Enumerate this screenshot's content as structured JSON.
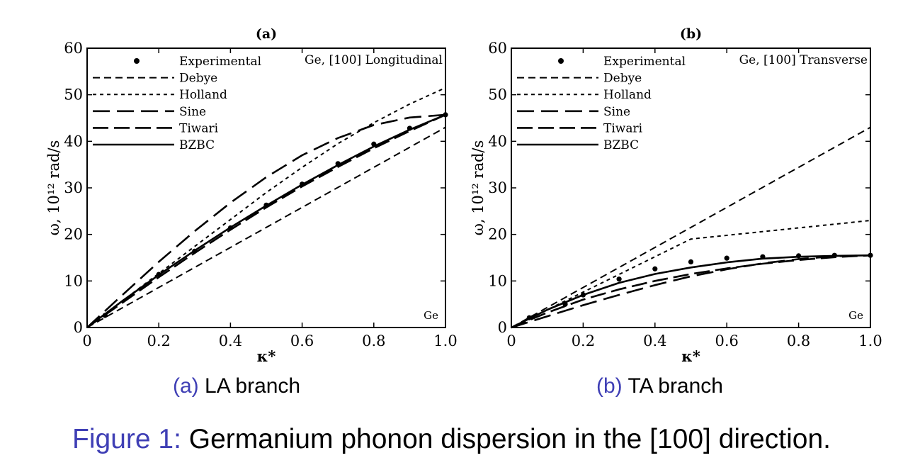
{
  "chart_data": [
    {
      "type": "line",
      "panel_label": "(a)",
      "annotation": "Ge, [100] Longitudinal",
      "corner_label": "Ge",
      "xlabel": "κ*",
      "ylabel": "ω, 10¹² rad/s",
      "xlim": [
        0,
        1.0
      ],
      "ylim": [
        0,
        60
      ],
      "xticks": [
        0,
        0.2,
        0.4,
        0.6,
        0.8,
        1.0
      ],
      "xtick_labels": [
        "0",
        "0.2",
        "0.4",
        "0.6",
        "0.8",
        "1.0"
      ],
      "yticks": [
        0,
        10,
        20,
        30,
        40,
        50,
        60
      ],
      "ytick_labels": [
        "0",
        "10",
        "20",
        "30",
        "40",
        "50",
        "60"
      ],
      "grid": false,
      "legend_position": "top-left",
      "series": [
        {
          "name": "Experimental",
          "style": "points",
          "x": [
            0.05,
            0.2,
            0.3,
            0.4,
            0.5,
            0.6,
            0.7,
            0.8,
            0.9,
            1.0
          ],
          "y": [
            2.6,
            11.4,
            16.4,
            21.4,
            26.3,
            30.8,
            35.2,
            39.4,
            42.8,
            45.7
          ]
        },
        {
          "name": "Debye",
          "style": "dash-medium",
          "x": [
            0,
            1.0
          ],
          "y": [
            0,
            43
          ]
        },
        {
          "name": "Holland",
          "style": "dash-short",
          "x": [
            0,
            0.1,
            0.2,
            0.3,
            0.4,
            0.5,
            0.6,
            0.7,
            0.8,
            0.9,
            1.0
          ],
          "y": [
            0,
            5.8,
            11.6,
            17.4,
            23.2,
            29.0,
            34.4,
            39.5,
            44.0,
            48.0,
            51.5
          ]
        },
        {
          "name": "Sine",
          "style": "dash-long",
          "x": [
            0,
            0.1,
            0.2,
            0.3,
            0.4,
            0.5,
            0.6,
            0.7,
            0.8,
            0.9,
            1.0
          ],
          "y": [
            0,
            7.1,
            14.1,
            20.7,
            26.8,
            32.3,
            37.0,
            40.7,
            43.5,
            45.1,
            45.7
          ]
        },
        {
          "name": "Tiwari",
          "style": "dash-heavy",
          "x": [
            0,
            0.1,
            0.2,
            0.3,
            0.4,
            0.5,
            0.6,
            0.7,
            0.8,
            0.9,
            1.0
          ],
          "y": [
            0,
            5.4,
            10.8,
            16.0,
            21.0,
            25.8,
            30.3,
            34.5,
            38.5,
            42.2,
            45.7
          ]
        },
        {
          "name": "BZBC",
          "style": "solid",
          "x": [
            0,
            0.1,
            0.2,
            0.3,
            0.4,
            0.5,
            0.6,
            0.7,
            0.8,
            0.9,
            1.0
          ],
          "y": [
            0,
            5.8,
            11.3,
            16.5,
            21.5,
            26.2,
            30.7,
            34.9,
            38.9,
            42.5,
            45.7
          ]
        }
      ]
    },
    {
      "type": "line",
      "panel_label": "(b)",
      "annotation": "Ge, [100] Transverse",
      "corner_label": "Ge",
      "xlabel": "κ*",
      "ylabel": "ω, 10¹² rad/s",
      "xlim": [
        0,
        1.0
      ],
      "ylim": [
        0,
        60
      ],
      "xticks": [
        0,
        0.2,
        0.4,
        0.6,
        0.8,
        1.0
      ],
      "xtick_labels": [
        "0",
        "0.2",
        "0.4",
        "0.6",
        "0.8",
        "1.0"
      ],
      "yticks": [
        0,
        10,
        20,
        30,
        40,
        50,
        60
      ],
      "ytick_labels": [
        "0",
        "10",
        "20",
        "30",
        "40",
        "50",
        "60"
      ],
      "grid": false,
      "legend_position": "top-left",
      "series": [
        {
          "name": "Experimental",
          "style": "points",
          "x": [
            0.05,
            0.15,
            0.2,
            0.3,
            0.4,
            0.5,
            0.6,
            0.7,
            0.8,
            0.9,
            1.0
          ],
          "y": [
            2.1,
            5.0,
            7.0,
            10.4,
            12.6,
            14.1,
            14.9,
            15.2,
            15.4,
            15.5,
            15.5
          ]
        },
        {
          "name": "Debye",
          "style": "dash-medium",
          "x": [
            0,
            1.0
          ],
          "y": [
            0,
            43
          ]
        },
        {
          "name": "Holland",
          "style": "dash-short",
          "x": [
            0,
            0.5,
            1.0
          ],
          "y": [
            0,
            19,
            23
          ]
        },
        {
          "name": "Sine",
          "style": "dash-long",
          "x": [
            0,
            0.1,
            0.2,
            0.3,
            0.4,
            0.5,
            0.6,
            0.7,
            0.8,
            0.9,
            1.0
          ],
          "y": [
            0,
            2.4,
            4.8,
            7.0,
            9.1,
            11.0,
            12.5,
            13.8,
            14.7,
            15.3,
            15.5
          ]
        },
        {
          "name": "Tiwari",
          "style": "dash-heavy",
          "x": [
            0,
            0.1,
            0.2,
            0.3,
            0.4,
            0.5,
            0.6,
            0.7,
            0.8,
            0.9,
            1.0
          ],
          "y": [
            0,
            3.2,
            6.0,
            8.2,
            10.0,
            11.5,
            12.7,
            13.7,
            14.5,
            15.1,
            15.5
          ]
        },
        {
          "name": "BZBC",
          "style": "solid",
          "x": [
            0,
            0.1,
            0.2,
            0.3,
            0.4,
            0.5,
            0.6,
            0.7,
            0.8,
            0.9,
            1.0
          ],
          "y": [
            0,
            3.8,
            7.0,
            9.6,
            11.5,
            12.9,
            14.0,
            14.8,
            15.2,
            15.4,
            15.5
          ]
        }
      ]
    }
  ],
  "subcaptions": [
    {
      "tag": "(a)",
      "text": "LA branch"
    },
    {
      "tag": "(b)",
      "text": "TA branch"
    }
  ],
  "figure_caption": {
    "tag": "Figure 1:",
    "text": "Germanium phonon dispersion in the [100] direction."
  }
}
